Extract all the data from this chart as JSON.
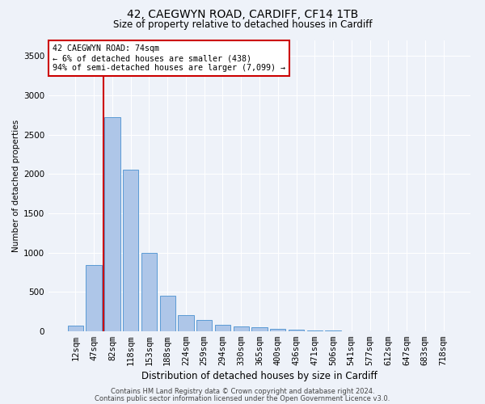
{
  "title1": "42, CAEGWYN ROAD, CARDIFF, CF14 1TB",
  "title2": "Size of property relative to detached houses in Cardiff",
  "xlabel": "Distribution of detached houses by size in Cardiff",
  "ylabel": "Number of detached properties",
  "categories": [
    "12sqm",
    "47sqm",
    "82sqm",
    "118sqm",
    "153sqm",
    "188sqm",
    "224sqm",
    "259sqm",
    "294sqm",
    "330sqm",
    "365sqm",
    "400sqm",
    "436sqm",
    "471sqm",
    "506sqm",
    "541sqm",
    "577sqm",
    "612sqm",
    "647sqm",
    "683sqm",
    "718sqm"
  ],
  "values": [
    70,
    840,
    2720,
    2060,
    1000,
    450,
    210,
    140,
    80,
    65,
    50,
    30,
    25,
    15,
    10,
    5,
    3,
    2,
    1,
    1,
    0
  ],
  "bar_color": "#aec6e8",
  "bar_edge_color": "#5b9bd5",
  "marker_color": "#cc0000",
  "annotation_text": "42 CAEGWYN ROAD: 74sqm\n← 6% of detached houses are smaller (438)\n94% of semi-detached houses are larger (7,099) →",
  "annotation_box_color": "#ffffff",
  "annotation_box_edge": "#cc0000",
  "ylim": [
    0,
    3700
  ],
  "yticks": [
    0,
    500,
    1000,
    1500,
    2000,
    2500,
    3000,
    3500
  ],
  "footer1": "Contains HM Land Registry data © Crown copyright and database right 2024.",
  "footer2": "Contains public sector information licensed under the Open Government Licence v3.0.",
  "bg_color": "#eef2f9",
  "grid_color": "#ffffff",
  "title1_fontsize": 10,
  "title2_fontsize": 8.5,
  "xlabel_fontsize": 8.5,
  "ylabel_fontsize": 7.5,
  "tick_fontsize": 7.5,
  "footer_fontsize": 6.0
}
